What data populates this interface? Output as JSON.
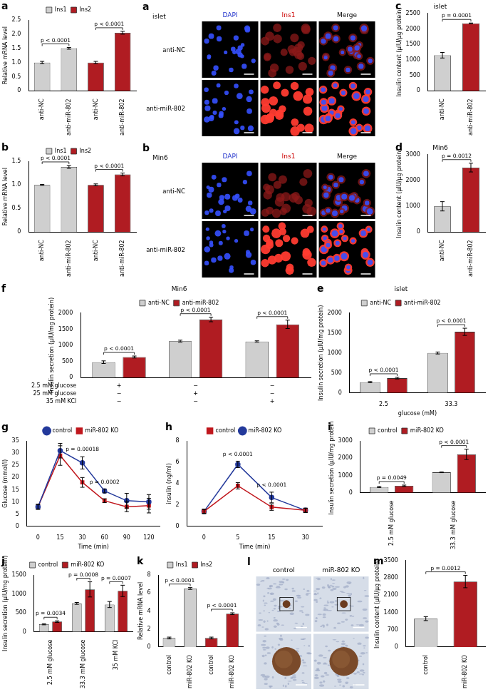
{
  "chart_data": [
    {
      "panel": "a",
      "type": "bar",
      "categories": [
        "anti-NC",
        "anti-miR-802",
        "anti-NC",
        "anti-miR-802"
      ],
      "series": [
        {
          "name": "Ins1",
          "color": "#cfcfcf",
          "values": [
            1.0,
            1.5,
            null,
            null
          ],
          "errors": [
            0.04,
            0.03,
            null,
            null
          ]
        },
        {
          "name": "Ins2",
          "color": "#b01c22",
          "values": [
            null,
            null,
            1.0,
            2.05
          ],
          "errors": [
            null,
            null,
            0.04,
            0.05
          ]
        }
      ],
      "ylabel": "Relative mRNA level",
      "ylim": [
        0,
        2.5
      ],
      "yticks": [
        0,
        0.5,
        {
          "value": 1,
          "label": "1.0"
        },
        1.5,
        {
          "value": 2,
          "label": "2.0"
        },
        2.5
      ],
      "legend": "top",
      "grid": false,
      "annotations": [
        {
          "text": "p < 0.0001",
          "from": 0,
          "to": 1
        },
        {
          "text": "p < 0.0001",
          "from": 2,
          "to": 3
        }
      ]
    },
    {
      "panel": "b",
      "type": "bar",
      "categories": [
        "anti-NC",
        "anti-miR-802",
        "anti-NC",
        "anti-miR-802"
      ],
      "series": [
        {
          "name": "Ins1",
          "color": "#cfcfcf",
          "values": [
            1.0,
            1.38,
            null,
            null
          ],
          "errors": [
            0.01,
            0.03,
            null,
            null
          ]
        },
        {
          "name": "Ins2",
          "color": "#b01c22",
          "values": [
            null,
            null,
            1.0,
            1.22
          ],
          "errors": [
            null,
            null,
            0.02,
            0.03
          ]
        }
      ],
      "ylabel": "Relative mRNA level",
      "ylim": [
        0,
        1.5
      ],
      "yticks": [
        0,
        0.5,
        {
          "value": 1,
          "label": "1.0"
        },
        1.5
      ],
      "legend": "top",
      "grid": false,
      "annotations": [
        {
          "text": "p < 0.0001",
          "from": 0,
          "to": 1
        },
        {
          "text": "p < 0.0001",
          "from": 2,
          "to": 3
        }
      ]
    },
    {
      "panel": "c",
      "type": "bar",
      "title": "islet",
      "categories": [
        "anti-NC",
        "anti-miR-802"
      ],
      "values": [
        1150,
        2180
      ],
      "errors": [
        90,
        10
      ],
      "colors": [
        "#cfcfcf",
        "#b01c22"
      ],
      "ylabel": "Insulin content (μIU/μg protein)",
      "ylim": [
        0,
        2500
      ],
      "yticks": [
        0,
        500,
        1000,
        1500,
        2000,
        2500
      ],
      "grid": false,
      "annotations": [
        {
          "text": "p = 0.0001",
          "from": 0,
          "to": 1
        }
      ]
    },
    {
      "panel": "d",
      "type": "bar",
      "title": "Min6",
      "categories": [
        "anti-NC",
        "anti-miR-802"
      ],
      "values": [
        1000,
        2500
      ],
      "errors": [
        180,
        170
      ],
      "colors": [
        "#cfcfcf",
        "#b01c22"
      ],
      "ylabel": "Insulin content (μIU/μg protein)",
      "ylim": [
        0,
        3000
      ],
      "yticks": [
        0,
        1000,
        2000,
        3000
      ],
      "grid": false,
      "annotations": [
        {
          "text": "p = 0.0012",
          "from": 0,
          "to": 1
        }
      ]
    },
    {
      "panel": "e",
      "type": "bar",
      "title": "islet",
      "categories": [
        "2.5",
        "33.3"
      ],
      "series": [
        {
          "name": "anti-NC",
          "color": "#cfcfcf",
          "values": [
            270,
            1000
          ],
          "errors": [
            15,
            25
          ]
        },
        {
          "name": "anti-miR-802",
          "color": "#b01c22",
          "values": [
            370,
            1530
          ],
          "errors": [
            20,
            90
          ]
        }
      ],
      "xlabel": "glucose (mM)",
      "ylabel": "Insulin secretion (μIU/mg protein)",
      "ylim": [
        0,
        2000
      ],
      "yticks": [
        0,
        500,
        1000,
        1500,
        2000
      ],
      "legend": "top",
      "grid": false,
      "annotations": [
        {
          "text": "p < 0.0001",
          "from": 0,
          "to": 0
        },
        {
          "text": "p < 0.0001",
          "from": 1,
          "to": 1
        }
      ]
    },
    {
      "panel": "f",
      "type": "bar",
      "title": "Min6",
      "categories": [
        null,
        null,
        null
      ],
      "conditions": [
        {
          "name": "2.5 mM glucose",
          "marks": [
            "+",
            "−",
            "−"
          ]
        },
        {
          "name": "25 mM glucose",
          "marks": [
            "−",
            "+",
            "−"
          ]
        },
        {
          "name": "35 mM KCl",
          "marks": [
            "−",
            "−",
            "+"
          ]
        }
      ],
      "series": [
        {
          "name": "anti-NC",
          "color": "#cfcfcf",
          "values": [
            480,
            1130,
            1120
          ],
          "errors": [
            40,
            30,
            20
          ]
        },
        {
          "name": "anti-miR-802",
          "color": "#b01c22",
          "values": [
            640,
            1800,
            1650
          ],
          "errors": [
            30,
            70,
            130
          ]
        }
      ],
      "ylabel": "Insulin secretion (μIU/mg protein)",
      "ylim": [
        0,
        2000
      ],
      "yticks": [
        0,
        500,
        1000,
        1500,
        2000
      ],
      "legend": "top",
      "grid": false,
      "annotations": [
        {
          "text": "p < 0.0001",
          "from": 0,
          "to": 0
        },
        {
          "text": "p < 0.0001",
          "from": 1,
          "to": 1
        },
        {
          "text": "p < 0.0001",
          "from": 2,
          "to": 2
        }
      ]
    },
    {
      "panel": "g",
      "type": "line",
      "categories": [
        "0",
        "15",
        "30",
        "60",
        "90",
        "120"
      ],
      "series": [
        {
          "name": "control",
          "color": "#23399b",
          "marker": "circle",
          "line_style": "solid",
          "values": [
            8,
            31,
            26,
            14.5,
            10.5,
            10
          ],
          "errors": [
            1,
            3,
            2.5,
            0.8,
            3,
            3
          ]
        },
        {
          "name": "miR-802 KO",
          "color": "#c0171d",
          "marker": "square",
          "line_style": "solid",
          "values": [
            8,
            29,
            18,
            10.5,
            8,
            8.5
          ],
          "errors": [
            1,
            4,
            2,
            0.8,
            2,
            3
          ]
        }
      ],
      "xlabel": "Time (min)",
      "ylabel": "Glucose (mmol/l)",
      "ylim": [
        0,
        35
      ],
      "yticks": [
        0,
        5,
        10,
        15,
        20,
        25,
        30,
        35
      ],
      "legend": "top",
      "grid": false,
      "annotations": [
        {
          "text": "p = 0.00018",
          "from": 2,
          "to": 2
        },
        {
          "text": "p = 0.0002",
          "from": 3,
          "to": 3
        }
      ]
    },
    {
      "panel": "h",
      "type": "line",
      "categories": [
        "0",
        "5",
        "15",
        "30"
      ],
      "series": [
        {
          "name": "control",
          "color": "#c0171d",
          "marker": "square",
          "line_style": "solid",
          "values": [
            1.4,
            3.8,
            1.8,
            1.5
          ],
          "errors": [
            0.2,
            0.3,
            0.3,
            0.2
          ]
        },
        {
          "name": "miR-802 KO",
          "color": "#23399b",
          "marker": "circle",
          "line_style": "solid",
          "values": [
            1.4,
            5.8,
            2.7,
            1.5
          ],
          "errors": [
            0.2,
            0.3,
            0.5,
            0.2
          ]
        }
      ],
      "xlabel": "Time (min)",
      "ylabel": "insulin (ng/ml)",
      "ylim": [
        0,
        8
      ],
      "yticks": [
        0,
        2,
        4,
        6,
        8
      ],
      "legend": "top",
      "grid": false,
      "annotations": [
        {
          "text": "p < 0.0001",
          "from": 1,
          "to": 1
        },
        {
          "text": "p < 0.0001",
          "from": 2,
          "to": 2
        }
      ]
    },
    {
      "panel": "i",
      "type": "bar",
      "categories": [
        "2.5 mM glucose",
        "33.3 mM glucose"
      ],
      "series": [
        {
          "name": "control",
          "color": "#cfcfcf",
          "values": [
            330,
            1180
          ],
          "errors": [
            30,
            20
          ]
        },
        {
          "name": "miR-802 KO",
          "color": "#b01c22",
          "values": [
            400,
            2220
          ],
          "errors": [
            40,
            300
          ]
        }
      ],
      "ylabel": "Insulin secretion (μIU/mg protein)",
      "ylim": [
        0,
        3000
      ],
      "yticks": [
        0,
        1000,
        2000,
        3000
      ],
      "legend": "top",
      "grid": false,
      "annotations": [
        {
          "text": "p = 0.0049",
          "from": 0,
          "to": 0
        },
        {
          "text": "p < 0.0001",
          "from": 1,
          "to": 1
        }
      ]
    },
    {
      "panel": "j",
      "type": "bar",
      "categories": [
        "2.5 mM glucose",
        "33.3 mM glucose",
        "35 mM KCl"
      ],
      "series": [
        {
          "name": "control",
          "color": "#cfcfcf",
          "values": [
            200,
            750,
            720
          ],
          "errors": [
            15,
            25,
            80
          ]
        },
        {
          "name": "miR-802 KO",
          "color": "#b01c22",
          "values": [
            270,
            1120,
            1080
          ],
          "errors": [
            20,
            200,
            150
          ]
        }
      ],
      "ylabel": "Insulin secretion (μIU/mg protein)",
      "ylim": [
        0,
        1500
      ],
      "yticks": [
        0,
        500,
        1000,
        1500
      ],
      "legend": "top",
      "grid": false,
      "annotations": [
        {
          "text": "p = 0.0034",
          "from": 0,
          "to": 0
        },
        {
          "text": "p = 0.0008",
          "from": 1,
          "to": 1
        },
        {
          "text": "p = 0.0007",
          "from": 2,
          "to": 2
        }
      ]
    },
    {
      "panel": "k",
      "type": "bar",
      "categories": [
        "control",
        "miR-802 KO",
        "control",
        "miR-802 KO"
      ],
      "series": [
        {
          "name": "Ins1",
          "color": "#cfcfcf",
          "values": [
            1.0,
            6.5,
            null,
            null
          ],
          "errors": [
            0.1,
            0.1,
            null,
            null
          ]
        },
        {
          "name": "Ins2",
          "color": "#b01c22",
          "values": [
            null,
            null,
            1.0,
            3.7
          ],
          "errors": [
            null,
            null,
            0.1,
            0.1
          ]
        }
      ],
      "ylabel": "Relative mRNA level",
      "ylim": [
        0,
        8
      ],
      "yticks": [
        0,
        2,
        4,
        6,
        8
      ],
      "legend": "top",
      "grid": false,
      "annotations": [
        {
          "text": "p < 0.0001",
          "from": 0,
          "to": 1
        },
        {
          "text": "p < 0.0001",
          "from": 2,
          "to": 3
        }
      ]
    },
    {
      "panel": "m",
      "type": "bar",
      "categories": [
        "control",
        "miR-802 KO"
      ],
      "values": [
        1150,
        2650
      ],
      "errors": [
        80,
        250
      ],
      "colors": [
        "#cfcfcf",
        "#b01c22"
      ],
      "ylabel": "Insulin content (μIU/μg protein)",
      "ylim": [
        0,
        3500
      ],
      "yticks": [
        0,
        700,
        1400,
        2100,
        2800,
        3500
      ],
      "grid": false,
      "annotations": [
        {
          "text": "p = 0.0012",
          "from": 0,
          "to": 1
        }
      ]
    }
  ],
  "images": [
    {
      "panel": "a",
      "type": "fluorescence",
      "title": "islet",
      "columns": [
        {
          "name": "DAPI",
          "color": "#2233cc"
        },
        {
          "name": "Ins1",
          "color": "#cc0000"
        },
        {
          "name": "Merge",
          "color": "#000000"
        }
      ],
      "rows": [
        "anti-NC",
        "anti-miR-802"
      ]
    },
    {
      "panel": "b",
      "type": "fluorescence",
      "title": "Min6",
      "columns": [
        {
          "name": "DAPI",
          "color": "#2233cc"
        },
        {
          "name": "Ins1",
          "color": "#cc0000"
        },
        {
          "name": "Merge",
          "color": "#000000"
        }
      ],
      "rows": [
        "anti-NC",
        "anti-miR-802"
      ]
    },
    {
      "panel": "l",
      "type": "histology",
      "columns": [
        {
          "name": "control",
          "color": "#000000"
        },
        {
          "name": "miR-802 KO",
          "color": "#000000"
        }
      ],
      "rows": [
        null,
        null
      ]
    }
  ]
}
